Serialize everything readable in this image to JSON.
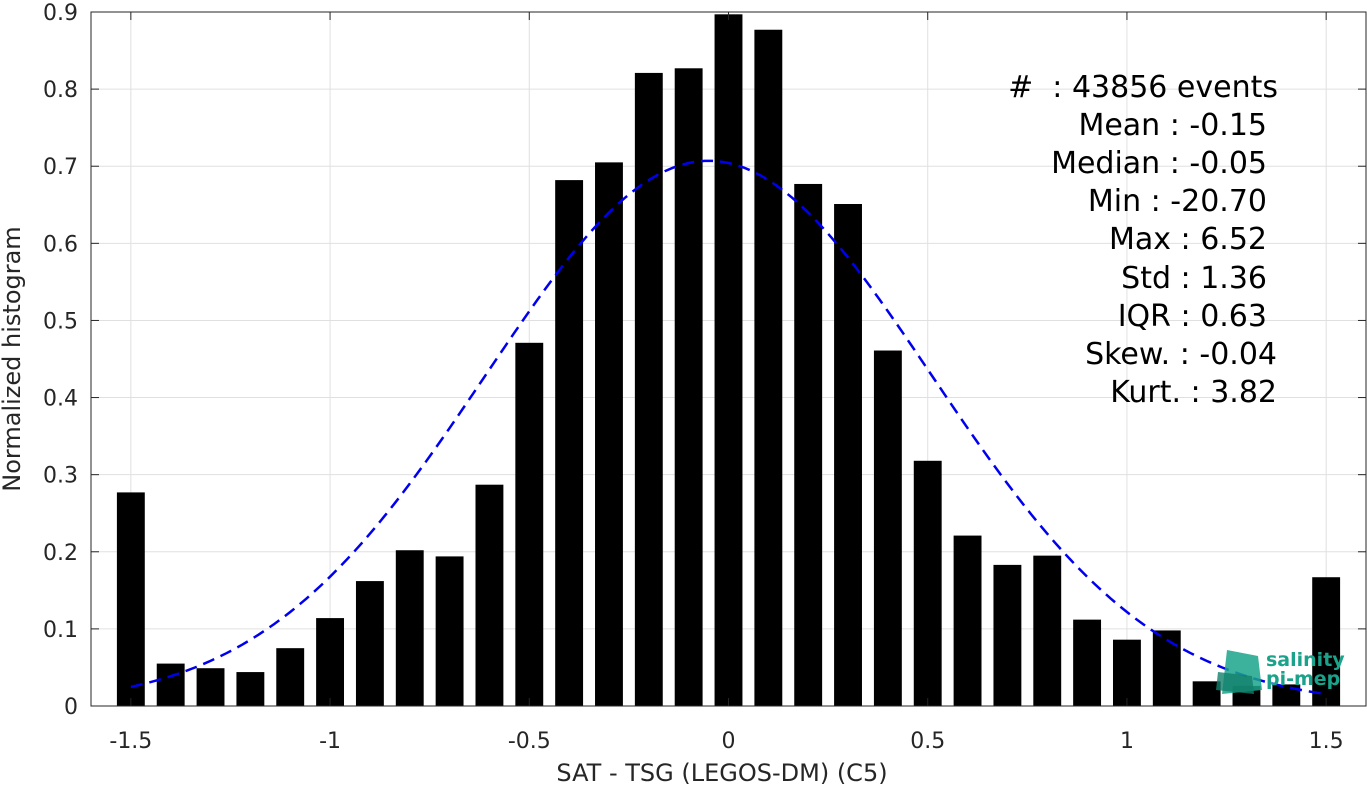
{
  "chart_data": {
    "type": "bar",
    "xlabel": "SAT - TSG (LEGOS-DM) (C5)",
    "ylabel": "Normalized histogram",
    "xlim": [
      -1.6,
      1.6
    ],
    "ylim": [
      0,
      0.9
    ],
    "x_ticks": [
      "-1.5",
      "-1",
      "-0.5",
      "0",
      "0.5",
      "1",
      "1.5"
    ],
    "x_tick_values": [
      -1.5,
      -1,
      -0.5,
      0,
      0.5,
      1,
      1.5
    ],
    "y_ticks": [
      "0",
      "0.1",
      "0.2",
      "0.3",
      "0.4",
      "0.5",
      "0.6",
      "0.7",
      "0.8",
      "0.9"
    ],
    "y_tick_values": [
      0,
      0.1,
      0.2,
      0.3,
      0.4,
      0.5,
      0.6,
      0.7,
      0.8,
      0.9
    ],
    "grid": true,
    "bar_width": 0.07,
    "bar_color": "#000000",
    "series": [
      {
        "x": [
          -1.5,
          -1.4,
          -1.3,
          -1.2,
          -1.1,
          -1.0,
          -0.9,
          -0.8,
          -0.7,
          -0.6,
          -0.5,
          -0.4,
          -0.3,
          -0.2,
          -0.1,
          0.0,
          0.1,
          0.2,
          0.3,
          0.4,
          0.5,
          0.6,
          0.7,
          0.8,
          0.9,
          1.0,
          1.1,
          1.2,
          1.3,
          1.4,
          1.5
        ],
        "values": [
          0.277,
          0.055,
          0.049,
          0.044,
          0.075,
          0.114,
          0.162,
          0.202,
          0.194,
          0.287,
          0.471,
          0.682,
          0.705,
          0.821,
          0.827,
          0.897,
          0.877,
          0.677,
          0.651,
          0.461,
          0.318,
          0.221,
          0.183,
          0.195,
          0.112,
          0.086,
          0.098,
          0.032,
          0.026,
          0.028,
          0.167
        ]
      }
    ],
    "fit_curve": {
      "style": "dashed",
      "color": "#0000ee",
      "mean": -0.05,
      "std": 0.56,
      "peak": 0.707,
      "x_range": [
        -1.5,
        1.5
      ]
    },
    "stats": {
      "count_line": "#  : 43856 events",
      "mean_line": "Mean : -0.15",
      "median_line": "Median : -0.05",
      "min_line": "Min : -20.70",
      "max_line": "Max : 6.52",
      "std_line": "Std : 1.36",
      "iqr_line": "IQR : 0.63",
      "skew_line": "Skew. : -0.04",
      "kurt_line": "Kurt. : 3.82"
    }
  },
  "logo": {
    "line1": "salinity",
    "line2": "pi-mep",
    "color": "#1aa38a"
  }
}
